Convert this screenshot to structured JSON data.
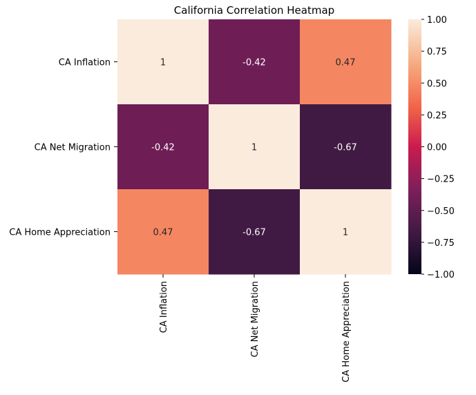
{
  "chart_data": {
    "type": "heatmap",
    "title": "California Correlation Heatmap",
    "xlabel": "",
    "ylabel": "",
    "row_labels": [
      "CA Inflation",
      "CA Net Migration",
      "CA Home Appreciation"
    ],
    "col_labels": [
      "CA Inflation",
      "CA Net Migration",
      "CA Home Appreciation"
    ],
    "values": [
      [
        1,
        -0.42,
        0.47
      ],
      [
        -0.42,
        1,
        -0.67
      ],
      [
        0.47,
        -0.67,
        1
      ]
    ],
    "cell_text": [
      [
        "1",
        "-0.42",
        "0.47"
      ],
      [
        "-0.42",
        "1",
        "-0.67"
      ],
      [
        "0.47",
        "-0.67",
        "1"
      ]
    ],
    "colorbar": {
      "vmin": -1.0,
      "vmax": 1.0,
      "ticks": [
        1.0,
        0.75,
        0.5,
        0.25,
        0.0,
        -0.25,
        -0.5,
        -0.75,
        -1.0
      ],
      "tick_labels": [
        "1.00",
        "0.75",
        "0.50",
        "0.25",
        "0.00",
        "−0.25",
        "−0.50",
        "−0.75",
        "−1.00"
      ],
      "colormap": "rocket"
    },
    "grid": false
  }
}
